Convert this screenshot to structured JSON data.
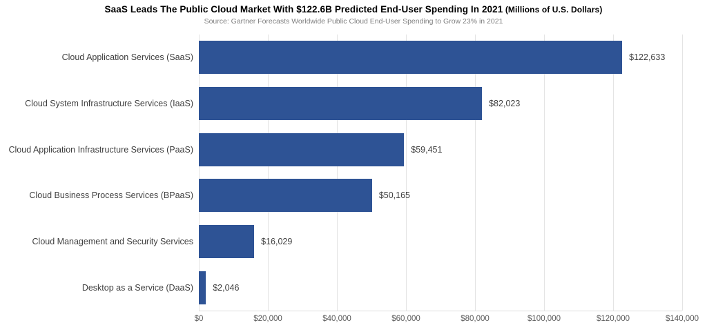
{
  "header": {
    "title_main": "SaaS Leads The Public Cloud Market With $122.6B Predicted End-User Spending In 2021",
    "title_paren": " (Millions of U.S. Dollars)",
    "subtitle": "Source: Gartner Forecasts Worldwide Public Cloud End-User Spending to Grow 23% in 2021"
  },
  "colors": {
    "bar": "#2E5395",
    "gridline": "#E4E4E4",
    "axis_line": "#DCDCDC",
    "title": "#000000",
    "subtitle": "#7F7F7F",
    "category_label": "#3F3F3F",
    "value_label": "#3F3F3F",
    "tick_label": "#595959"
  },
  "chart_data": {
    "type": "bar",
    "orientation": "horizontal",
    "title": "SaaS Leads The Public Cloud Market With $122.6B Predicted End-User Spending In 2021 (Millions of U.S. Dollars)",
    "subtitle": "Source: Gartner Forecasts Worldwide Public Cloud End-User Spending to Grow 23% in 2021",
    "categories": [
      "Cloud Application Services (SaaS)",
      "Cloud System Infrastructure Services (IaaS)",
      "Cloud Application Infrastructure Services (PaaS)",
      "Cloud Business Process Services (BPaaS)",
      "Cloud Management and Security Services",
      "Desktop as a Service (DaaS)"
    ],
    "values": [
      122633,
      82023,
      59451,
      50165,
      16029,
      2046
    ],
    "value_labels": [
      "$122,633",
      "$82,023",
      "$59,451",
      "$50,165",
      "$16,029",
      "$2,046"
    ],
    "xlabel": "",
    "ylabel": "",
    "xlim": [
      0,
      140000
    ],
    "x_ticks": [
      0,
      20000,
      40000,
      60000,
      80000,
      100000,
      120000,
      140000
    ],
    "x_tick_labels": [
      "$0",
      "$20,000",
      "$40,000",
      "$60,000",
      "$80,000",
      "$100,000",
      "$120,000",
      "$140,000"
    ],
    "grid": "vertical",
    "legend": "none",
    "data_labels": "outside-end"
  }
}
